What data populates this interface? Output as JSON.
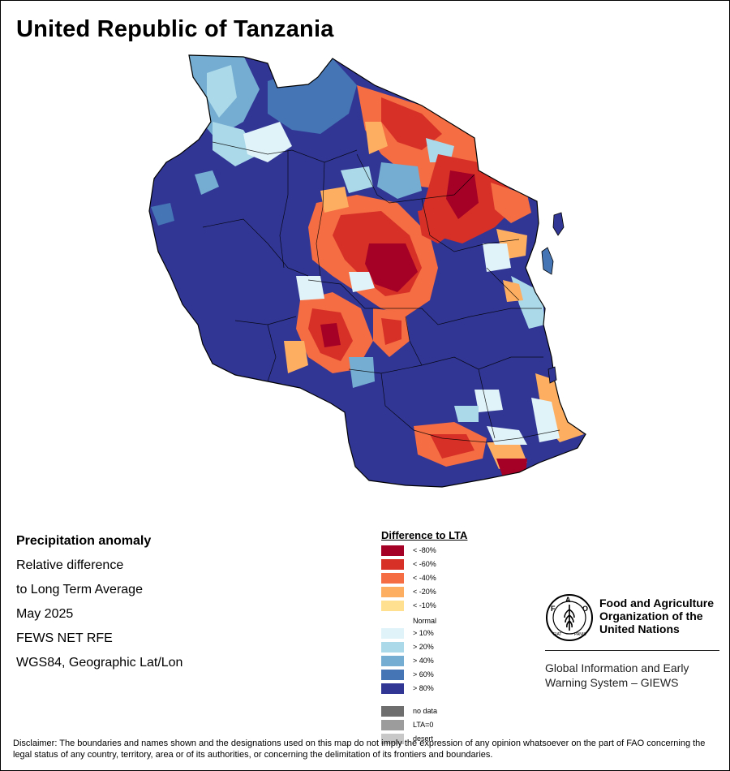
{
  "title": "United Republic of Tanzania",
  "info": {
    "heading": "Precipitation anomaly",
    "lines": [
      "Relative difference",
      "to Long Term Average",
      "May 2025",
      "FEWS NET RFE",
      "WGS84, Geographic Lat/Lon"
    ]
  },
  "legend": {
    "title": "Difference to LTA",
    "dry": [
      {
        "label": "< -80%",
        "color": "#a50026"
      },
      {
        "label": "< -60%",
        "color": "#d73027"
      },
      {
        "label": "< -40%",
        "color": "#f46d43"
      },
      {
        "label": "< -20%",
        "color": "#fdae61"
      },
      {
        "label": "< -10%",
        "color": "#fee090"
      }
    ],
    "normal": "Normal",
    "wet": [
      {
        "label": "> 10%",
        "color": "#e0f3f8"
      },
      {
        "label": "> 20%",
        "color": "#abd9e9"
      },
      {
        "label": "> 40%",
        "color": "#74add1"
      },
      {
        "label": "> 60%",
        "color": "#4575b4"
      },
      {
        "label": "> 80%",
        "color": "#313695"
      }
    ],
    "other": [
      {
        "label": "no data",
        "color": "#6e6e6e"
      },
      {
        "label": "LTA=0",
        "color": "#9c9c9c"
      },
      {
        "label": "desert",
        "color": "#c8c8c8"
      }
    ]
  },
  "fao": {
    "logo_text": "FAO",
    "logo_motto": "FIAT PANIS",
    "name": [
      "Food and Agriculture",
      "Organization of the",
      "United Nations"
    ],
    "system": [
      "Global Information and Early",
      "Warning System – GIEWS"
    ]
  },
  "disclaimer": "Disclaimer: The boundaries and names shown and the designations used on this map do not imply the expression of any opinion whatsoever on the part of FAO concerning the legal status of any country, territory, area or of its authorities, or concerning the delimitation of its frontiers and boundaries."
}
